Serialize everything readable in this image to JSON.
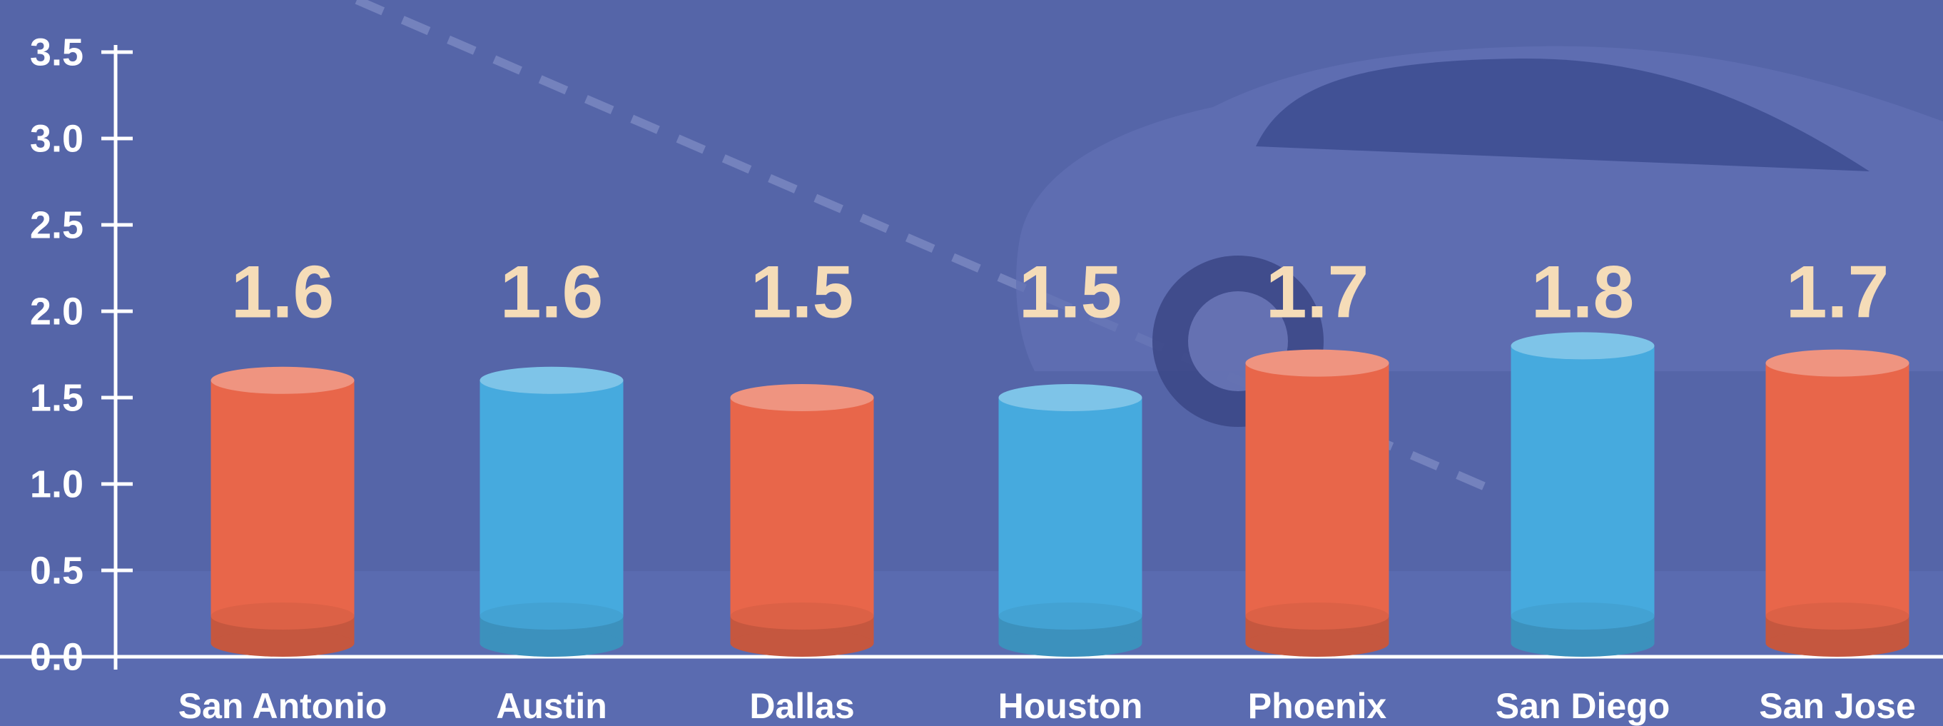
{
  "chart_data": {
    "type": "bar",
    "categories": [
      "San Antonio",
      "Austin",
      "Dallas",
      "Houston",
      "Phoenix",
      "San Diego",
      "San Jose"
    ],
    "values": [
      1.6,
      1.6,
      1.5,
      1.5,
      1.7,
      1.8,
      1.7
    ],
    "colors": [
      "#e8664a",
      "#46aade",
      "#e8664a",
      "#46aade",
      "#e8664a",
      "#46aade",
      "#e8664a"
    ],
    "ylim": [
      0,
      3.5
    ],
    "yticks": [
      {
        "value": 0,
        "label": "0.0"
      },
      {
        "value": 0.5,
        "label": "0.5"
      },
      {
        "value": 1,
        "label": "1.0"
      },
      {
        "value": 1.5,
        "label": "1.5"
      },
      {
        "value": 2,
        "label": "2.0"
      },
      {
        "value": 2.5,
        "label": "2.5"
      },
      {
        "value": 3,
        "label": "3.0"
      },
      {
        "value": 3.5,
        "label": "3.5"
      }
    ]
  }
}
